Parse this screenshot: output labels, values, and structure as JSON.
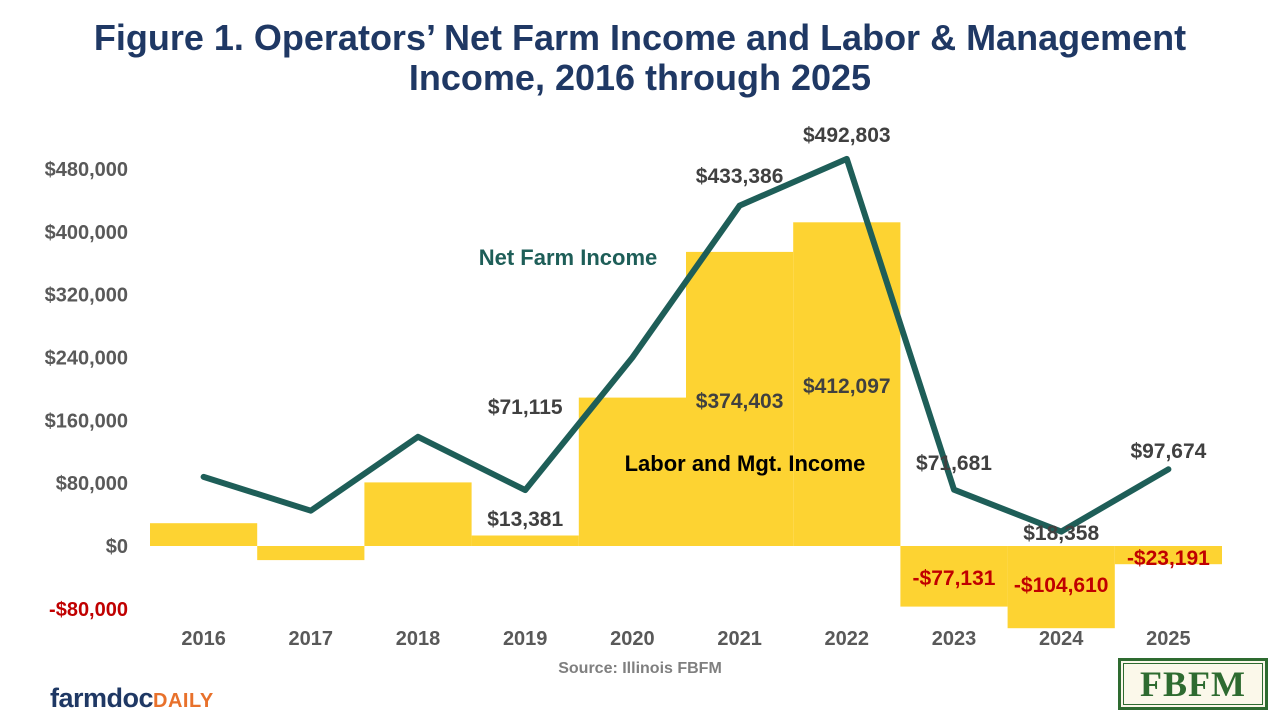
{
  "header": {
    "title_line1": "Figure 1.  Operators’ Net Farm Income and Labor & Management",
    "title_line2": "Income, 2016 through 2025"
  },
  "footer": {
    "source": "Source: Illinois FBFM",
    "logo_left_main": "farmdoc",
    "logo_left_accent": "DAILY",
    "logo_right": "FBFM"
  },
  "colors": {
    "title": "#1f3864",
    "line": "#1e5e58",
    "bar": "#fdd332",
    "axis_text": "#595959",
    "negative_text": "#c00000",
    "label_text": "#404040"
  },
  "chart_data": {
    "type": "bar+line",
    "categories": [
      "2016",
      "2017",
      "2018",
      "2019",
      "2020",
      "2021",
      "2022",
      "2023",
      "2024",
      "2025"
    ],
    "ylim": [
      -80000,
      480000
    ],
    "yticks": [
      {
        "value": 480000,
        "label": "$480,000"
      },
      {
        "value": 400000,
        "label": "$400,000"
      },
      {
        "value": 320000,
        "label": "$320,000"
      },
      {
        "value": 240000,
        "label": "$240,000"
      },
      {
        "value": 160000,
        "label": "$160,000"
      },
      {
        "value": 80000,
        "label": "$80,000"
      },
      {
        "value": 0,
        "label": "$0"
      },
      {
        "value": -80000,
        "label": "-$80,000"
      }
    ],
    "grid": false,
    "series": [
      {
        "name": "Labor and Mgt. Income",
        "kind": "bar",
        "values": [
          29000,
          -18000,
          81000,
          13381,
          189000,
          374403,
          412097,
          -77131,
          -104610,
          -23191
        ],
        "labels": [
          "",
          "",
          "",
          "$13,381",
          "",
          "$374,403",
          "$412,097",
          "-$77,131",
          "-$104,610",
          "-$23,191"
        ]
      },
      {
        "name": "Net Farm Income",
        "kind": "line",
        "values": [
          88000,
          45000,
          139000,
          71115,
          240000,
          433386,
          492803,
          71681,
          18358,
          97674
        ],
        "labels": [
          "",
          "",
          "",
          "$71,115",
          "",
          "$433,386",
          "$492,803",
          "$71,681",
          "$18,358",
          "$97,674"
        ]
      }
    ]
  }
}
